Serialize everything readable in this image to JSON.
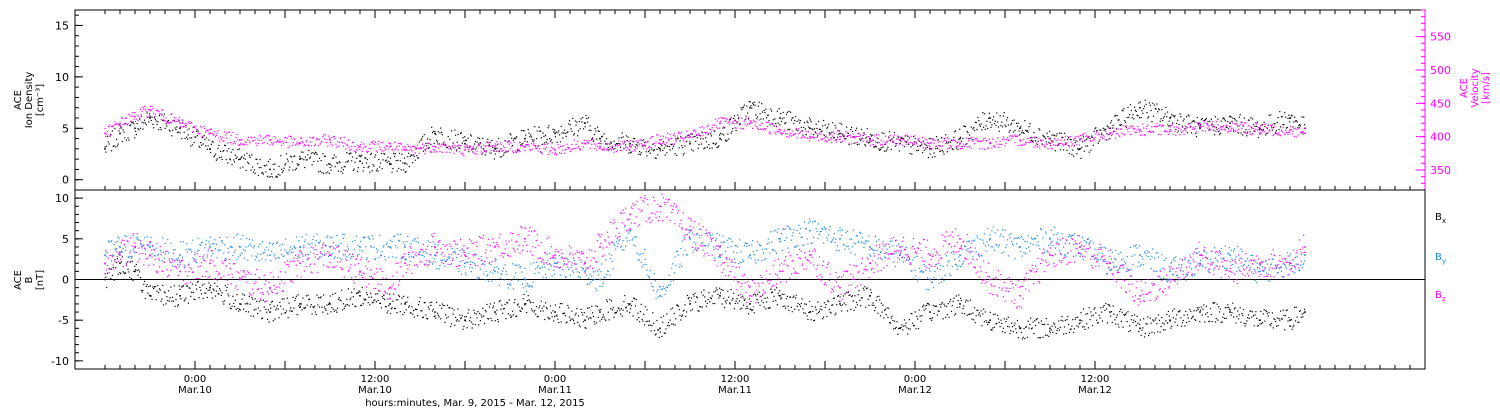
{
  "chart_data": [
    {
      "type": "scatter",
      "title": "",
      "ylabel": [
        "ACE",
        "Ion Density",
        "[cm⁻³]"
      ],
      "ylim": [
        -1,
        16.5
      ],
      "yticks": [
        0,
        5,
        10,
        15
      ],
      "ytick_labels": [
        "0",
        "5",
        "10",
        "15"
      ],
      "y2label": [
        "ACE",
        "Velocity",
        "[km/s]"
      ],
      "y2lim": [
        320,
        590
      ],
      "y2ticks": [
        350,
        400,
        450,
        500,
        550
      ],
      "y2tick_labels": [
        "350",
        "400",
        "450",
        "500",
        "550"
      ],
      "grid": false,
      "series": [
        {
          "color": "#000000",
          "axis": "left",
          "x": [
            0,
            2,
            4,
            6,
            10,
            14,
            18,
            22,
            26,
            30,
            34,
            38,
            40,
            44,
            48,
            52,
            56,
            60,
            64,
            66,
            70,
            74,
            78,
            82,
            86,
            90,
            94,
            98,
            102,
            106,
            110,
            114,
            118,
            122,
            126,
            130,
            134,
            138,
            142,
            146,
            150,
            154,
            158,
            160
          ],
          "y": [
            3.0,
            4.5,
            5.0,
            6.0,
            5.0,
            3.0,
            2.0,
            1.0,
            2.0,
            1.5,
            1.8,
            1.5,
            1.6,
            4.5,
            3.5,
            3.0,
            4.0,
            4.5,
            5.5,
            4.0,
            3.5,
            3.0,
            3.5,
            4.0,
            7.0,
            6.0,
            5.0,
            4.5,
            4.0,
            3.5,
            3.0,
            4.0,
            6.0,
            5.0,
            4.0,
            3.0,
            5.0,
            7.0,
            6.0,
            5.0,
            5.5,
            5.0,
            6.0,
            5.0
          ]
        },
        {
          "color": "#ff00ff",
          "axis": "right",
          "x": [
            0,
            2,
            4,
            6,
            10,
            14,
            18,
            22,
            26,
            30,
            34,
            38,
            40,
            44,
            48,
            52,
            56,
            60,
            64,
            66,
            70,
            74,
            78,
            82,
            86,
            90,
            94,
            98,
            102,
            106,
            110,
            114,
            118,
            122,
            126,
            130,
            134,
            138,
            142,
            146,
            150,
            154,
            158,
            160
          ],
          "y": [
            405,
            420,
            430,
            440,
            420,
            405,
            395,
            395,
            390,
            395,
            385,
            385,
            380,
            385,
            380,
            385,
            385,
            380,
            390,
            385,
            385,
            395,
            400,
            420,
            420,
            410,
            400,
            400,
            395,
            395,
            390,
            390,
            390,
            395,
            390,
            395,
            405,
            410,
            410,
            415,
            415,
            410,
            410,
            405
          ]
        }
      ]
    },
    {
      "type": "scatter",
      "title": "",
      "ylabel": [
        "ACE",
        "B",
        "[nT]"
      ],
      "ylim": [
        -11,
        11
      ],
      "yticks": [
        -10,
        -5,
        0,
        5,
        10
      ],
      "ytick_labels": [
        "-10",
        "-5",
        "0",
        "5",
        "10"
      ],
      "zero_line": 0,
      "grid": false,
      "legend_position": "right",
      "xlabel": "hours:minutes, Mar. 9, 2015 - Mar. 12, 2015",
      "x_ticks": [
        {
          "x": 12,
          "label": [
            "0:00",
            "Mar.10"
          ]
        },
        {
          "x": 36,
          "label": [
            "12:00",
            "Mar.10"
          ]
        },
        {
          "x": 60,
          "label": [
            "0:00",
            "Mar.11"
          ]
        },
        {
          "x": 84,
          "label": [
            "12:00",
            "Mar.11"
          ]
        },
        {
          "x": 108,
          "label": [
            "0:00",
            "Mar.12"
          ]
        },
        {
          "x": 132,
          "label": [
            "12:00",
            "Mar.12"
          ]
        }
      ],
      "xlim": [
        -4,
        176
      ],
      "series": [
        {
          "name": "Bx",
          "color": "#000000",
          "x": [
            0,
            2,
            4,
            6,
            10,
            14,
            18,
            22,
            26,
            30,
            34,
            38,
            40,
            44,
            48,
            52,
            56,
            60,
            64,
            66,
            70,
            74,
            78,
            82,
            86,
            90,
            94,
            98,
            102,
            106,
            110,
            114,
            118,
            122,
            126,
            130,
            134,
            138,
            142,
            146,
            150,
            154,
            158,
            160
          ],
          "y": [
            0,
            2,
            1,
            -2,
            -2,
            -1,
            -3,
            -4,
            -3,
            -3,
            -2,
            -3,
            -3,
            -4,
            -5,
            -4,
            -3,
            -4,
            -5,
            -4,
            -3,
            -6,
            -3,
            -2,
            -3,
            -2,
            -4,
            -3,
            -2,
            -6,
            -4,
            -3,
            -5,
            -6,
            -6,
            -5,
            -4,
            -6,
            -5,
            -4,
            -4,
            -5,
            -5,
            -4
          ]
        },
        {
          "name": "By",
          "color": "#1e88e5",
          "x": [
            0,
            2,
            4,
            6,
            10,
            14,
            18,
            22,
            26,
            30,
            34,
            38,
            40,
            44,
            48,
            52,
            56,
            60,
            64,
            66,
            70,
            74,
            78,
            82,
            86,
            90,
            94,
            98,
            102,
            106,
            110,
            114,
            118,
            122,
            126,
            130,
            134,
            138,
            142,
            146,
            150,
            154,
            158,
            160
          ],
          "y": [
            3,
            4,
            4,
            4,
            3,
            4,
            4,
            3,
            4,
            4,
            4,
            4,
            4,
            3,
            2,
            1,
            0,
            2,
            1,
            0,
            6,
            -2,
            5,
            4,
            3,
            5,
            6,
            5,
            4,
            3,
            0,
            3,
            5,
            4,
            5,
            4,
            2,
            3,
            1,
            2,
            3,
            1,
            2,
            3
          ]
        },
        {
          "name": "Bz",
          "color": "#ff00ff",
          "x": [
            0,
            2,
            4,
            6,
            10,
            14,
            18,
            22,
            26,
            30,
            34,
            38,
            40,
            44,
            48,
            52,
            56,
            60,
            64,
            66,
            70,
            74,
            78,
            82,
            86,
            90,
            94,
            98,
            102,
            106,
            110,
            114,
            118,
            122,
            126,
            130,
            134,
            138,
            142,
            146,
            150,
            154,
            158,
            160
          ],
          "y": [
            2,
            3,
            4,
            3,
            1,
            2,
            0,
            -1,
            2,
            3,
            1,
            -1,
            2,
            4,
            3,
            4,
            5,
            3,
            2,
            4,
            8,
            9,
            6,
            3,
            -2,
            1,
            3,
            -1,
            2,
            4,
            3,
            5,
            0,
            -2,
            3,
            4,
            2,
            -2,
            0,
            3,
            1,
            2,
            2,
            4
          ]
        }
      ],
      "legend": [
        {
          "label": "B",
          "sub": "x",
          "color": "#000000"
        },
        {
          "label": "B",
          "sub": "y",
          "color": "#1e88e5"
        },
        {
          "label": "B",
          "sub": "z",
          "color": "#ff00ff"
        }
      ]
    }
  ]
}
